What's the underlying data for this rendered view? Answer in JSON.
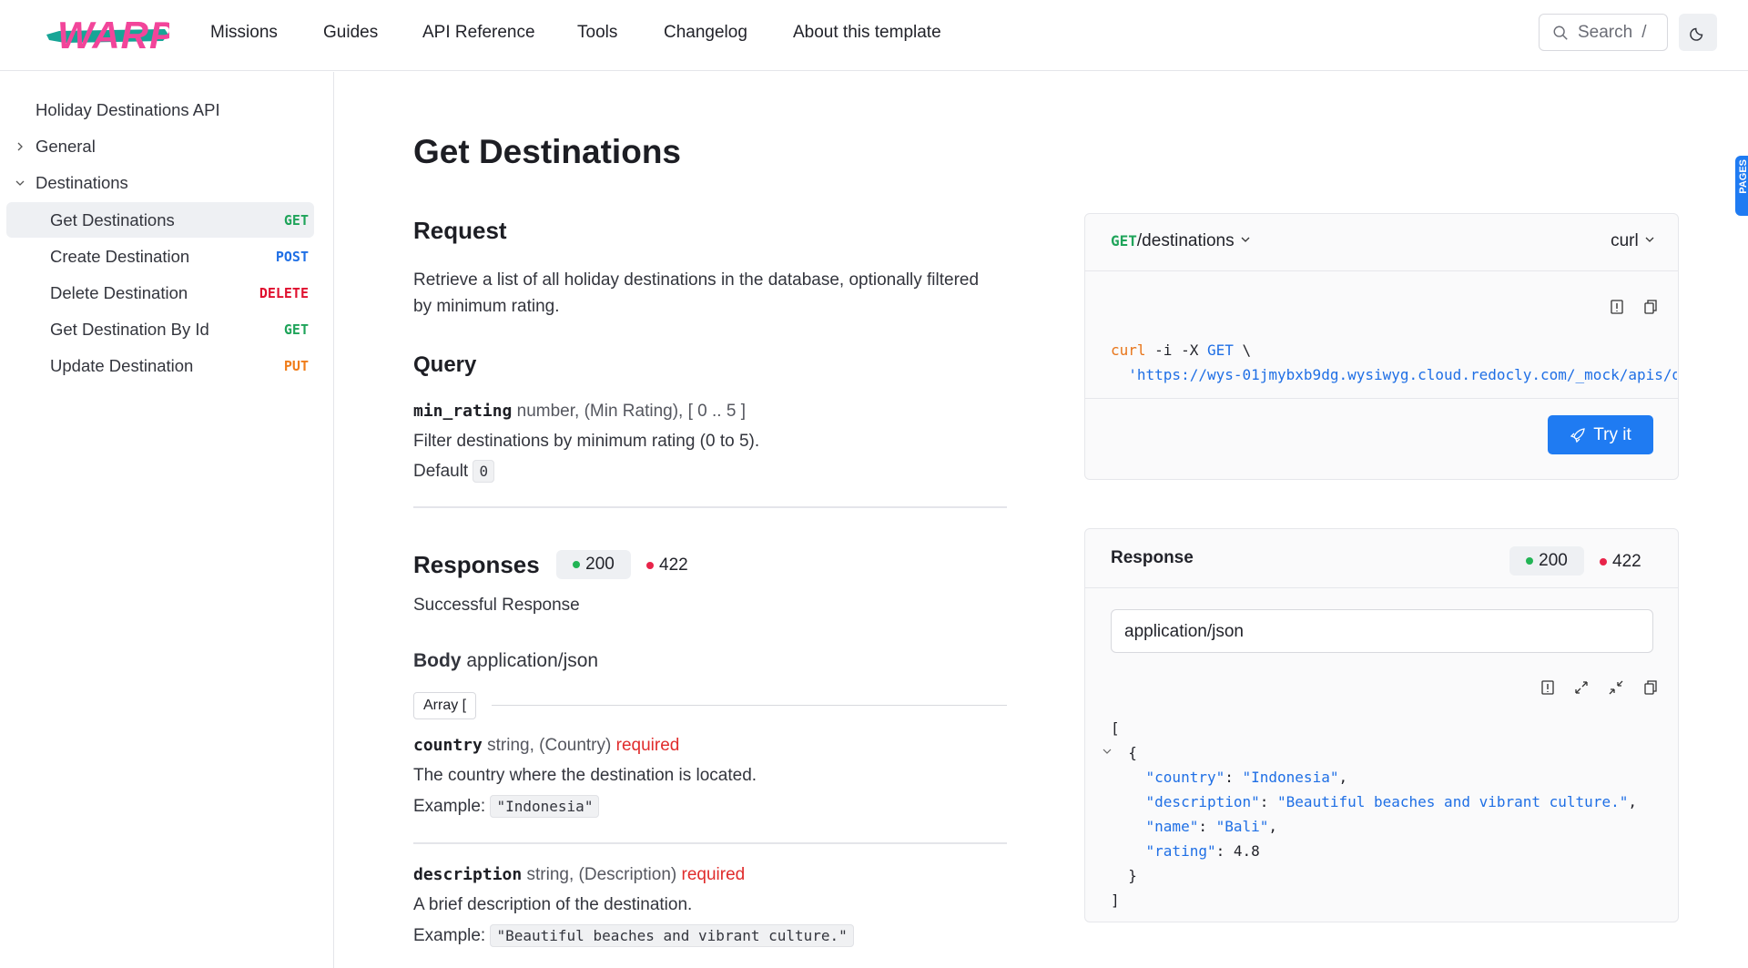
{
  "header": {
    "logo_text": "WARP",
    "nav": [
      "Missions",
      "Guides",
      "API Reference",
      "Tools",
      "Changelog",
      "About this template"
    ],
    "search_label": "Search",
    "search_shortcut": "/"
  },
  "sidebar": {
    "title": "Holiday Destinations API",
    "groups": [
      {
        "label": "General",
        "expanded": false
      },
      {
        "label": "Destinations",
        "expanded": true
      }
    ],
    "items": [
      {
        "label": "Get Destinations",
        "method": "GET",
        "active": true
      },
      {
        "label": "Create Destination",
        "method": "POST"
      },
      {
        "label": "Delete Destination",
        "method": "DELETE"
      },
      {
        "label": "Get Destination By Id",
        "method": "GET"
      },
      {
        "label": "Update Destination",
        "method": "PUT"
      }
    ]
  },
  "colors": {
    "GET": "#1fa45a",
    "POST": "#1f6fe5",
    "DELETE": "#e0102f",
    "PUT": "#f07d1a",
    "accent": "#1f7bf2",
    "success": "#22b455",
    "error": "#e8244a"
  },
  "main": {
    "title": "Get Destinations",
    "request_heading": "Request",
    "request_desc_1": "Retrieve a list of all holiday destinations in the database, optionally filtered",
    "request_desc_2": "by minimum rating.",
    "query_heading": "Query",
    "param": {
      "name": "min_rating",
      "meta": "number, (Min Rating), [ 0 .. 5 ]",
      "desc": "Filter destinations by minimum rating (0 to 5).",
      "default_label": "Default",
      "default_value": "0"
    },
    "responses_heading": "Responses",
    "codes": [
      "200",
      "422"
    ],
    "response_desc": "Successful Response",
    "body_label": "Body",
    "body_type": "application/json",
    "array_label": "Array [",
    "fields": [
      {
        "name": "country",
        "meta": "string, (Country)",
        "required": "required",
        "desc": "The country where the destination is located.",
        "example_label": "Example:",
        "example": "\"Indonesia\""
      },
      {
        "name": "description",
        "meta": "string, (Description)",
        "required": "required",
        "desc": "A brief description of the destination.",
        "example_label": "Example:",
        "example": "\"Beautiful beaches and vibrant culture.\""
      }
    ]
  },
  "request_panel": {
    "method": "GET",
    "path": "/destinations",
    "lang": "curl",
    "code_cmd": "curl",
    "code_flags": "-i -X",
    "code_method": "GET",
    "code_cont": "\\",
    "code_url": "'https://wys-01jmybxb9dg.wysiwyg.cloud.redocly.com/_mock/apis/d",
    "try_label": "Try it"
  },
  "response_panel": {
    "title": "Response",
    "codes": [
      "200",
      "422"
    ],
    "content_type": "application/json",
    "json": {
      "open": "[",
      "obj_open": "{",
      "lines": [
        {
          "key": "\"country\"",
          "value": "\"Indonesia\"",
          "sep": ","
        },
        {
          "key": "\"description\"",
          "value": "\"Beautiful beaches and vibrant culture.\"",
          "sep": ","
        },
        {
          "key": "\"name\"",
          "value": "\"Bali\"",
          "sep": ","
        },
        {
          "key": "\"rating\"",
          "value": "4.8",
          "sep": ""
        }
      ],
      "obj_close": "}",
      "close": "]"
    }
  },
  "pages_tab": "PAGES"
}
